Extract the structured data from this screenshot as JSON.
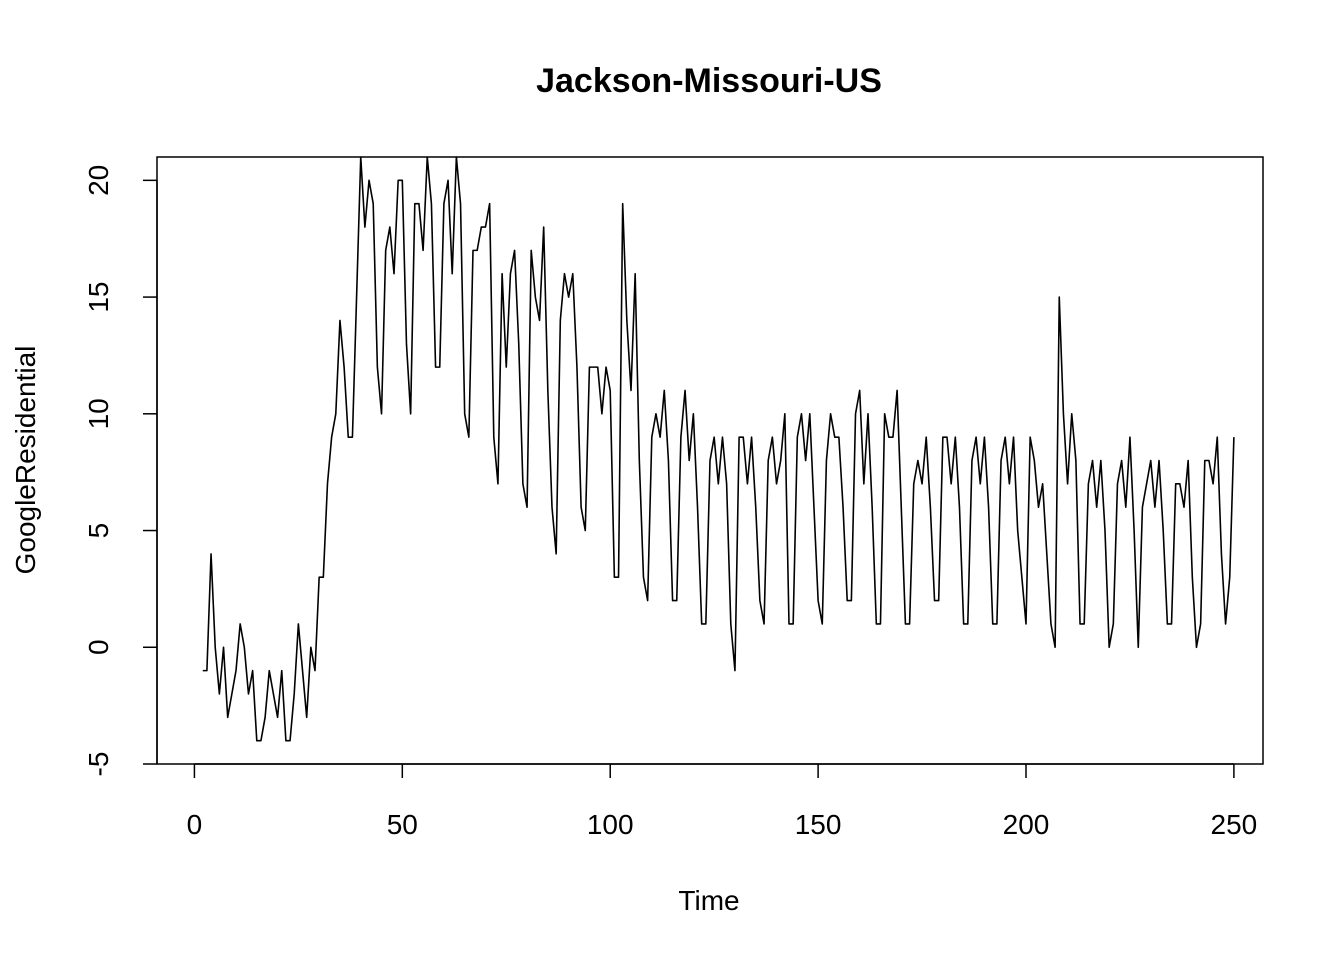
{
  "chart_data": {
    "type": "line",
    "title": "Jackson-Missouri-US",
    "xlabel": "Time",
    "ylabel": "GoogleResidential",
    "xlim": [
      -9,
      257
    ],
    "ylim": [
      -5,
      21
    ],
    "x_ticks": [
      0,
      50,
      100,
      150,
      200,
      250
    ],
    "y_ticks": [
      -5,
      0,
      5,
      10,
      15,
      20
    ],
    "x_tick_labels": [
      "0",
      "50",
      "100",
      "150",
      "200",
      "250"
    ],
    "y_tick_labels": [
      "-5",
      "0",
      "5",
      "10",
      "15",
      "20"
    ],
    "grid": false,
    "legend": "none",
    "line_color": "#000000",
    "series": [
      {
        "x_start": 2,
        "values": [
          -1,
          -1,
          4,
          0,
          -2,
          0,
          -3,
          -2,
          -1,
          1,
          0,
          -2,
          -1,
          -4,
          -4,
          -3,
          -1,
          -2,
          -3,
          -1,
          -4,
          -4,
          -2,
          1,
          -1,
          -3,
          0,
          -1,
          3,
          3,
          7,
          9,
          10,
          14,
          12,
          9,
          9,
          15,
          21,
          18,
          20,
          19,
          12,
          10,
          17,
          18,
          16,
          20,
          20,
          13,
          10,
          19,
          19,
          17,
          21,
          19,
          12,
          12,
          19,
          20,
          16,
          21,
          19,
          10,
          9,
          17,
          17,
          18,
          18,
          19,
          9,
          7,
          16,
          12,
          16,
          17,
          13,
          7,
          6,
          17,
          15,
          14,
          18,
          11,
          6,
          4,
          14,
          16,
          15,
          16,
          12,
          6,
          5,
          12,
          12,
          12,
          10,
          12,
          11,
          3,
          3,
          19,
          14,
          11,
          16,
          8,
          3,
          2,
          9,
          10,
          9,
          11,
          8,
          2,
          2,
          9,
          11,
          8,
          10,
          6,
          1,
          1,
          8,
          9,
          7,
          9,
          7,
          1,
          -1,
          9,
          9,
          7,
          9,
          6,
          2,
          1,
          8,
          9,
          7,
          8,
          10,
          1,
          1,
          9,
          10,
          8,
          10,
          6,
          2,
          1,
          8,
          10,
          9,
          9,
          6,
          2,
          2,
          10,
          11,
          7,
          10,
          6,
          1,
          1,
          10,
          9,
          9,
          11,
          6,
          1,
          1,
          7,
          8,
          7,
          9,
          6,
          2,
          2,
          9,
          9,
          7,
          9,
          6,
          1,
          1,
          8,
          9,
          7,
          9,
          6,
          1,
          1,
          8,
          9,
          7,
          9,
          5,
          3,
          1,
          9,
          8,
          6,
          7,
          4,
          1,
          0,
          15,
          10,
          7,
          10,
          8,
          1,
          1,
          7,
          8,
          6,
          8,
          5,
          0,
          1,
          7,
          8,
          6,
          9,
          5,
          0,
          6,
          7,
          8,
          6,
          8,
          5,
          1,
          1,
          7,
          7,
          6,
          8,
          3,
          0,
          1,
          8,
          8,
          7,
          9,
          4,
          1,
          3,
          9
        ]
      }
    ]
  }
}
